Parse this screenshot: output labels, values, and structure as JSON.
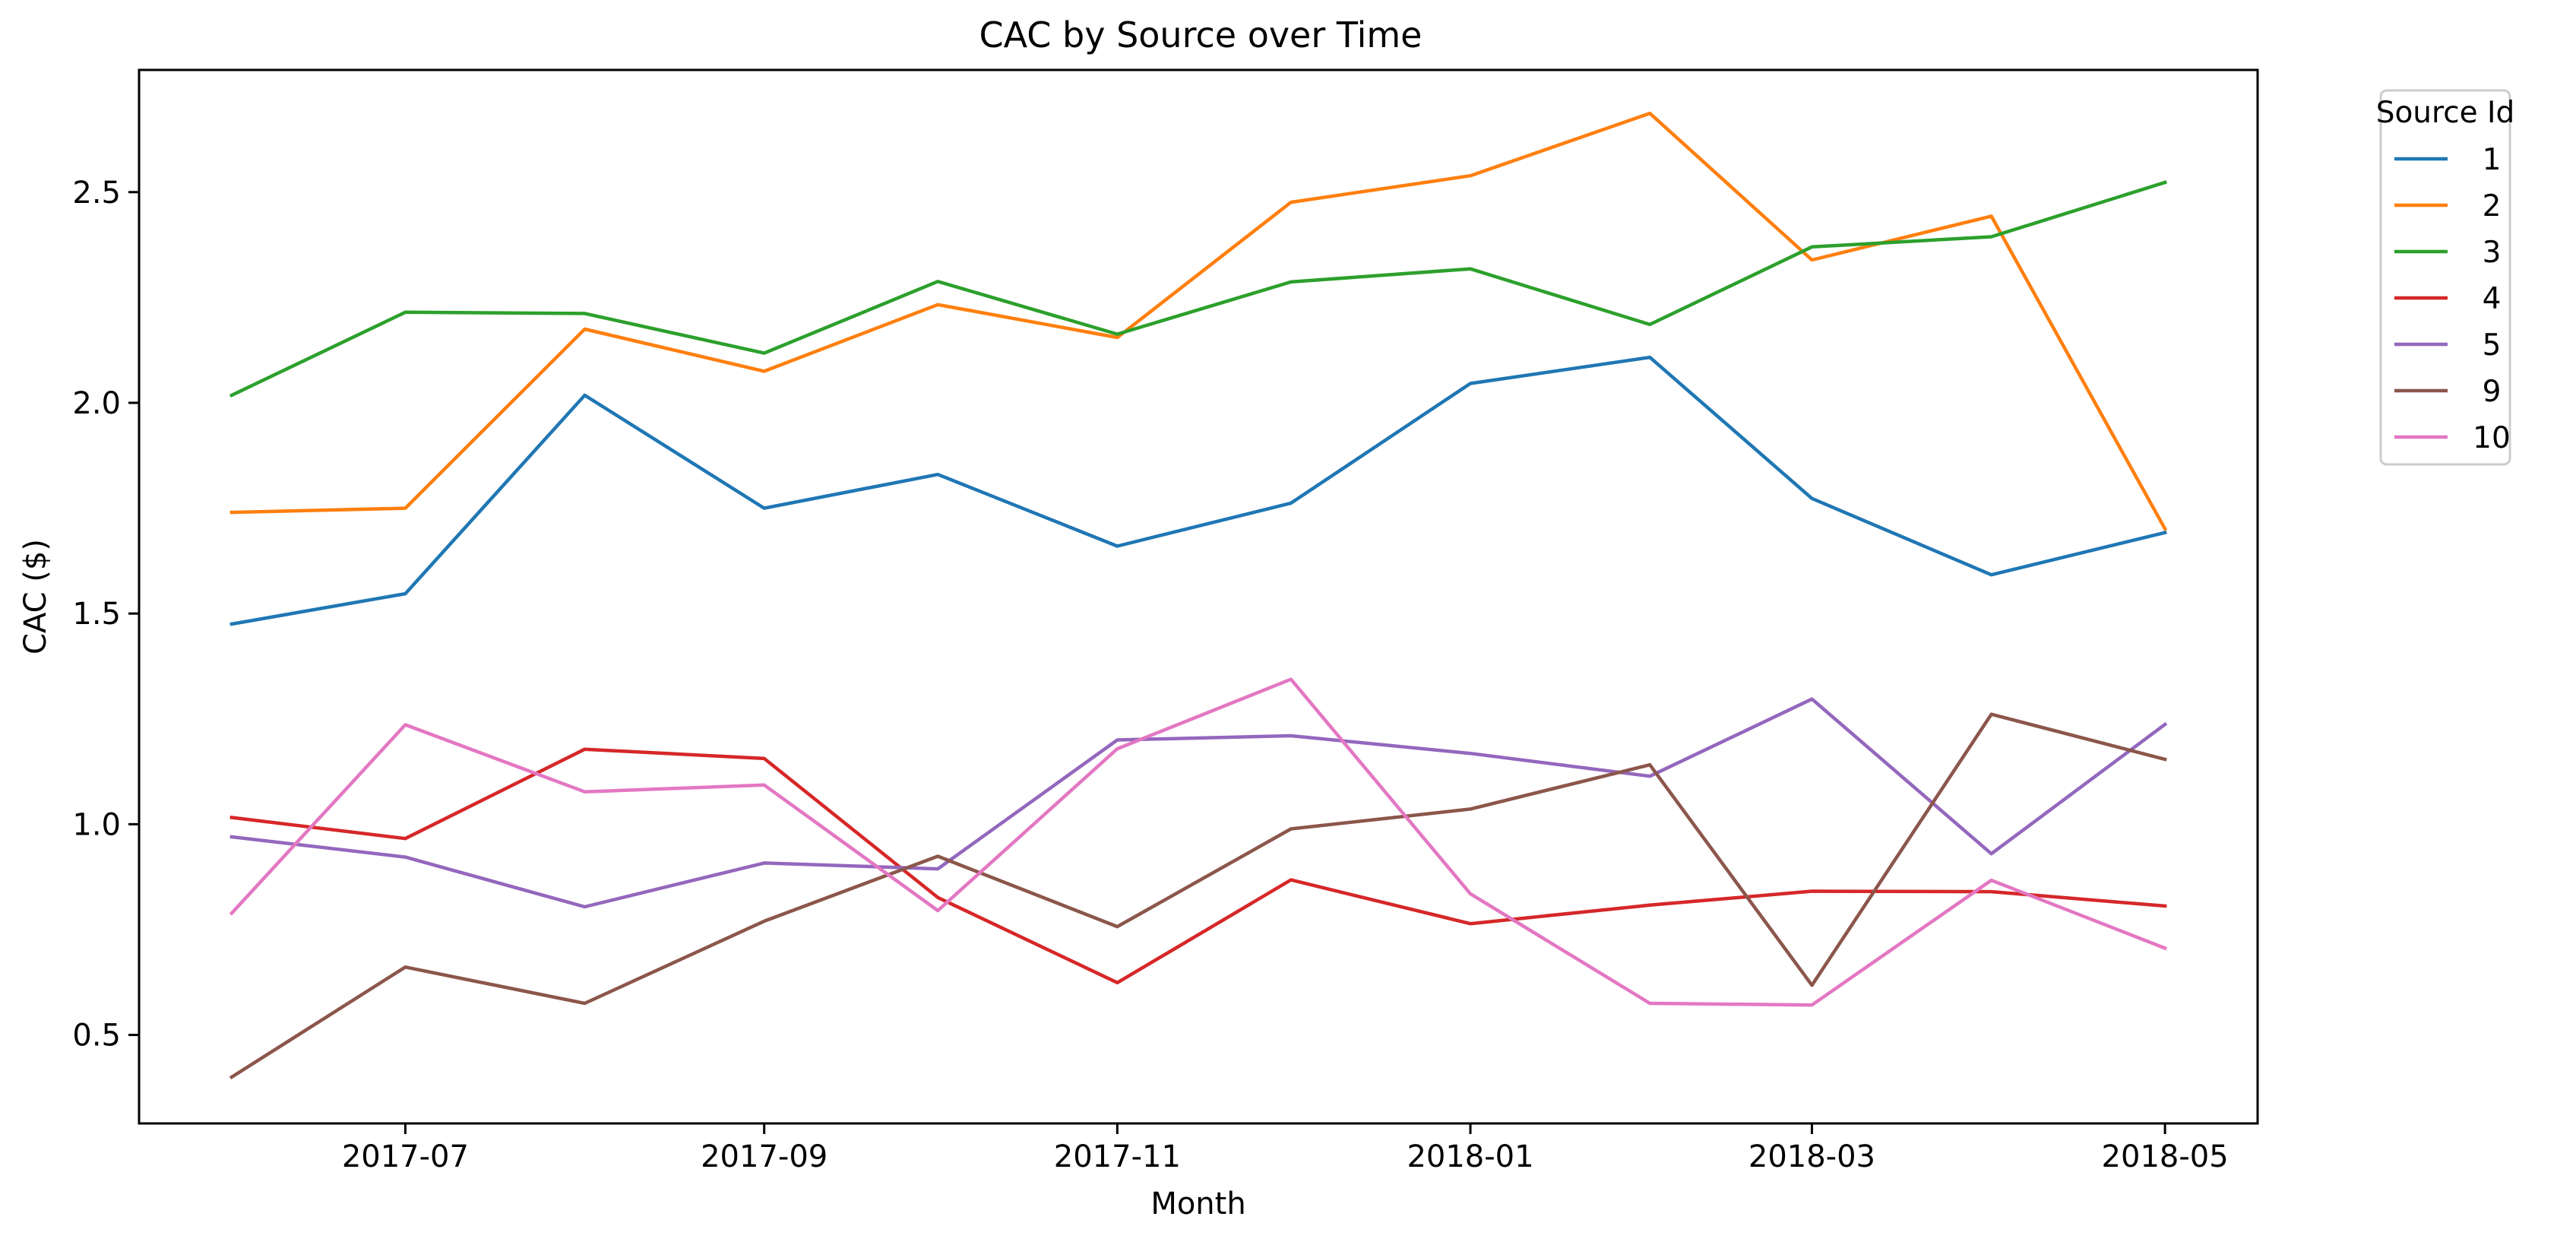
{
  "chart_data": {
    "type": "line",
    "title": "CAC by Source over Time",
    "xlabel": "Month",
    "ylabel": "CAC ($)",
    "x": [
      "2017-06",
      "2017-07",
      "2017-08",
      "2017-09",
      "2017-10",
      "2017-11",
      "2017-12",
      "2018-01",
      "2018-02",
      "2018-03",
      "2018-04",
      "2018-05"
    ],
    "x_ticks": [
      "2017-07",
      "2017-09",
      "2017-11",
      "2018-01",
      "2018-03",
      "2018-05"
    ],
    "y_ticks": [
      0.5,
      1.0,
      1.5,
      2.0,
      2.5
    ],
    "y_tick_labels": [
      "0.5",
      "1.0",
      "1.5",
      "2.0",
      "2.5"
    ],
    "xlim": [
      "2017-05-16",
      "2018-05-17"
    ],
    "ylim": [
      0.29,
      2.79
    ],
    "grid": false,
    "legend": {
      "title": "Source Id",
      "placement": "outside-top-right"
    },
    "series": [
      {
        "name": "1",
        "color": "#1f77b4",
        "values": [
          1.475,
          1.547,
          2.018,
          1.75,
          1.83,
          1.66,
          1.762,
          2.046,
          2.108,
          1.773,
          1.592,
          1.692
        ]
      },
      {
        "name": "2",
        "color": "#ff7f0e",
        "values": [
          1.74,
          1.75,
          2.175,
          2.075,
          2.233,
          2.155,
          2.476,
          2.539,
          2.687,
          2.339,
          2.443,
          1.701
        ]
      },
      {
        "name": "3",
        "color": "#2ca02c",
        "values": [
          2.018,
          2.215,
          2.212,
          2.118,
          2.288,
          2.163,
          2.287,
          2.318,
          2.186,
          2.37,
          2.394,
          2.523
        ]
      },
      {
        "name": "4",
        "color": "#d62728",
        "values": [
          1.016,
          0.966,
          1.178,
          1.156,
          0.826,
          0.624,
          0.868,
          0.764,
          0.808,
          0.841,
          0.84,
          0.806
        ]
      },
      {
        "name": "5",
        "color": "#9467bd",
        "values": [
          0.97,
          0.922,
          0.804,
          0.908,
          0.894,
          1.2,
          1.21,
          1.168,
          1.114,
          1.297,
          0.93,
          1.237
        ]
      },
      {
        "name": "9",
        "color": "#8c564b",
        "values": [
          0.4,
          0.661,
          0.575,
          0.77,
          0.924,
          0.757,
          0.989,
          1.036,
          1.141,
          0.618,
          1.261,
          1.154
        ]
      },
      {
        "name": "10",
        "color": "#e377c2",
        "values": [
          0.789,
          1.236,
          1.077,
          1.093,
          0.795,
          1.179,
          1.344,
          0.835,
          0.575,
          0.571,
          0.867,
          0.706
        ]
      }
    ]
  }
}
